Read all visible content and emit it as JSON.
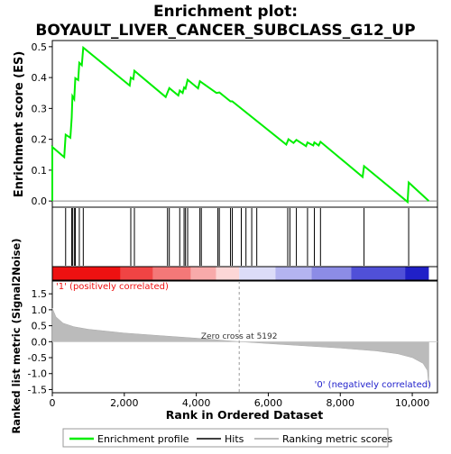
{
  "chart_data": {
    "type": "line",
    "title_line1": "Enrichment plot:",
    "title_line2": "BOYAULT_LIVER_CANCER_SUBCLASS_G12_UP",
    "es_panel": {
      "ylabel": "Enrichment score (ES)",
      "ylim": [
        -0.02,
        0.52
      ],
      "yticks": [
        "0.0",
        "0.1",
        "0.2",
        "0.3",
        "0.4",
        "0.5"
      ],
      "ytick_values": [
        0.0,
        0.1,
        0.2,
        0.3,
        0.4,
        0.5
      ],
      "series_name": "Enrichment profile",
      "color": "#00ee00",
      "points": [
        [
          0,
          0.0
        ],
        [
          1,
          0.175
        ],
        [
          330,
          0.142
        ],
        [
          370,
          0.215
        ],
        [
          500,
          0.205
        ],
        [
          540,
          0.27
        ],
        [
          560,
          0.34
        ],
        [
          610,
          0.33
        ],
        [
          640,
          0.398
        ],
        [
          720,
          0.392
        ],
        [
          750,
          0.448
        ],
        [
          820,
          0.44
        ],
        [
          860,
          0.497
        ],
        [
          2150,
          0.374
        ],
        [
          2180,
          0.4
        ],
        [
          2250,
          0.395
        ],
        [
          2280,
          0.422
        ],
        [
          3150,
          0.337
        ],
        [
          3250,
          0.366
        ],
        [
          3500,
          0.342
        ],
        [
          3540,
          0.358
        ],
        [
          3620,
          0.35
        ],
        [
          3660,
          0.368
        ],
        [
          3700,
          0.364
        ],
        [
          3760,
          0.393
        ],
        [
          4050,
          0.365
        ],
        [
          4100,
          0.388
        ],
        [
          4560,
          0.35
        ],
        [
          4640,
          0.352
        ],
        [
          4950,
          0.323
        ],
        [
          5000,
          0.323
        ],
        [
          6500,
          0.183
        ],
        [
          6560,
          0.2
        ],
        [
          6700,
          0.188
        ],
        [
          6780,
          0.198
        ],
        [
          7050,
          0.178
        ],
        [
          7090,
          0.19
        ],
        [
          7250,
          0.18
        ],
        [
          7280,
          0.19
        ],
        [
          7400,
          0.18
        ],
        [
          7450,
          0.192
        ],
        [
          8620,
          0.078
        ],
        [
          8660,
          0.113
        ],
        [
          9870,
          -0.003
        ],
        [
          9900,
          0.06
        ],
        [
          10460,
          0.0
        ]
      ]
    },
    "hits_panel": {
      "series_name": "Hits",
      "hit_positions": [
        370,
        540,
        560,
        610,
        640,
        750,
        860,
        2180,
        2280,
        3200,
        3250,
        3540,
        3660,
        3700,
        3760,
        4100,
        4140,
        4600,
        4640,
        4950,
        5000,
        5250,
        5380,
        5540,
        5680,
        6540,
        6600,
        6780,
        7090,
        7280,
        7450,
        8660,
        9900
      ]
    },
    "rank_bar": {
      "bands": [
        {
          "from": 0,
          "to": 1900,
          "color": "#ee1111"
        },
        {
          "from": 1900,
          "to": 2800,
          "color": "#f04444"
        },
        {
          "from": 2800,
          "to": 3850,
          "color": "#f47878"
        },
        {
          "from": 3850,
          "to": 4550,
          "color": "#f8aaaa"
        },
        {
          "from": 4550,
          "to": 5192,
          "color": "#fcd6d6"
        },
        {
          "from": 5192,
          "to": 6200,
          "color": "#dcdcf8"
        },
        {
          "from": 6200,
          "to": 7200,
          "color": "#b4b4f0"
        },
        {
          "from": 7200,
          "to": 8300,
          "color": "#8c8ce6"
        },
        {
          "from": 8300,
          "to": 9800,
          "color": "#5050d8"
        },
        {
          "from": 9800,
          "to": 10460,
          "color": "#2020c8"
        }
      ]
    },
    "metric_panel": {
      "ylabel": "Ranked list metric (Signal2Noise)",
      "xlabel": "Rank in Ordered Dataset",
      "ylim": [
        -1.6,
        1.9
      ],
      "yticks": [
        "1.5",
        "1.0",
        "0.5",
        "0.0",
        "-0.5",
        "-1.0",
        "-1.5"
      ],
      "ytick_values": [
        1.5,
        1.0,
        0.5,
        0.0,
        -0.5,
        -1.0,
        -1.5
      ],
      "xlim": [
        0,
        10700
      ],
      "xticks": [
        "0",
        "2,000",
        "4,000",
        "6,000",
        "8,000",
        "10,000"
      ],
      "xtick_values": [
        0,
        2000,
        4000,
        6000,
        8000,
        10000
      ],
      "series_name": "Ranking metric scores",
      "points": [
        [
          0,
          1.05
        ],
        [
          100,
          0.78
        ],
        [
          300,
          0.58
        ],
        [
          600,
          0.47
        ],
        [
          1000,
          0.39
        ],
        [
          2000,
          0.27
        ],
        [
          3000,
          0.19
        ],
        [
          4000,
          0.11
        ],
        [
          5192,
          0.0
        ],
        [
          6000,
          -0.06
        ],
        [
          7000,
          -0.13
        ],
        [
          8000,
          -0.2
        ],
        [
          9000,
          -0.29
        ],
        [
          9600,
          -0.38
        ],
        [
          10000,
          -0.5
        ],
        [
          10300,
          -0.68
        ],
        [
          10420,
          -0.9
        ],
        [
          10460,
          -1.4
        ]
      ],
      "zero_cross_label": "Zero cross at 5192",
      "zero_cross": 5192,
      "positive_label": "'1' (positively correlated)",
      "negative_label": "'0' (negatively correlated)"
    },
    "legend": {
      "placement": "bottom",
      "items": [
        {
          "label": "Enrichment profile",
          "color": "#00ee00",
          "kind": "line"
        },
        {
          "label": "Hits",
          "color": "#000000",
          "kind": "line"
        },
        {
          "label": "Ranking metric scores",
          "color": "#bbbbbb",
          "kind": "line"
        }
      ]
    }
  }
}
